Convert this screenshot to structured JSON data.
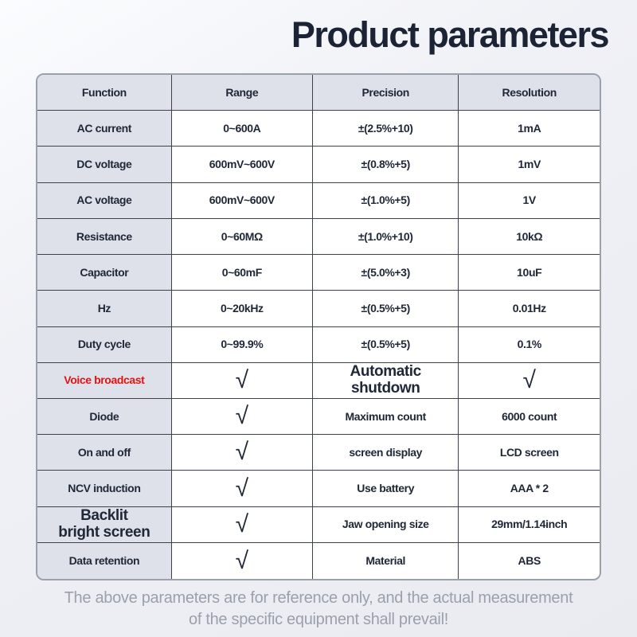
{
  "page": {
    "title": "Product parameters",
    "footer": "The above parameters are for reference only, and the actual measurement\nof the specific equipment shall prevail!"
  },
  "colors": {
    "title_text": "#1b2334",
    "table_text": "#202838",
    "highlight_red": "#e01414",
    "shaded_cell_bg": "#dee1ea",
    "cell_bg": "#ffffff",
    "inner_border": "#3d414d",
    "outer_border": "#9aa0ac",
    "footer_text": "#9aa0ac",
    "background": "#eef0f4"
  },
  "table": {
    "headers": [
      "Function",
      "Range",
      "Precision",
      "Resolution"
    ],
    "check_glyph": "√",
    "rows": [
      {
        "function": "AC current",
        "range": "0~600A",
        "precision": "±(2.5%+10)",
        "resolution": "1mA"
      },
      {
        "function": "DC voltage",
        "range": "600mV~600V",
        "precision": "±(0.8%+5)",
        "resolution": "1mV"
      },
      {
        "function": "AC voltage",
        "range": "600mV~600V",
        "precision": "±(1.0%+5)",
        "resolution": "1V"
      },
      {
        "function": "Resistance",
        "range": "0~60MΩ",
        "precision": "±(1.0%+10)",
        "resolution": "10kΩ"
      },
      {
        "function": "Capacitor",
        "range": "0~60mF",
        "precision": "±(5.0%+3)",
        "resolution": "10uF"
      },
      {
        "function": "Hz",
        "range": "0~20kHz",
        "precision": "±(0.5%+5)",
        "resolution": "0.01Hz"
      },
      {
        "function": "Duty cycle",
        "range": "0~99.9%",
        "precision": "±(0.5%+5)",
        "resolution": "0.1%"
      },
      {
        "function": "Voice broadcast",
        "range": "√",
        "precision": "Automatic\nshutdown",
        "resolution": "√",
        "red": true
      },
      {
        "function": "Diode",
        "range": "√",
        "precision": "Maximum count",
        "resolution": "6000 count"
      },
      {
        "function": "On and off",
        "range": "√",
        "precision": "screen display",
        "resolution": "LCD screen"
      },
      {
        "function": "NCV induction",
        "range": "√",
        "precision": "Use battery",
        "resolution": "AAA * 2"
      },
      {
        "function": "Backlit\nbright screen",
        "range": "√",
        "precision": "Jaw opening size",
        "resolution": "29mm/1.14inch"
      },
      {
        "function": "Data retention",
        "range": "√",
        "precision": "Material",
        "resolution": "ABS"
      }
    ]
  }
}
